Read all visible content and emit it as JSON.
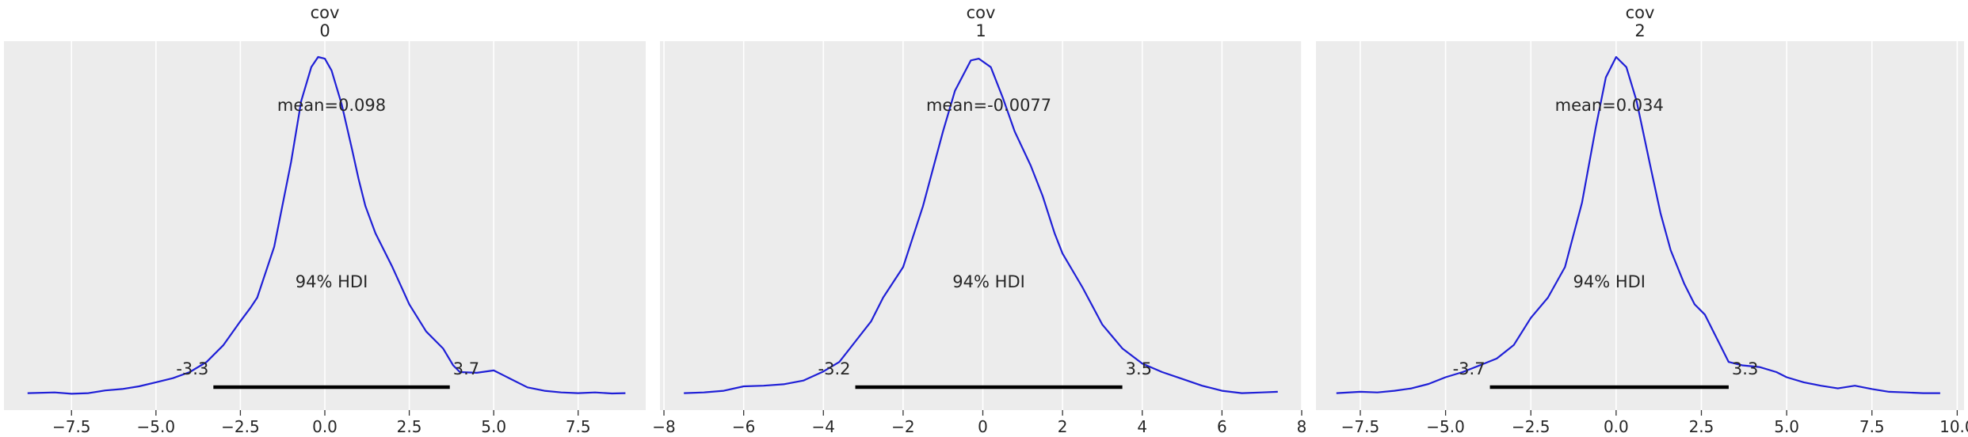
{
  "chart_data": [
    {
      "type": "density",
      "title_lines": [
        "cov",
        "0"
      ],
      "xlim": [
        -9.5,
        9.5
      ],
      "xticks": [
        -7.5,
        -5.0,
        -2.5,
        0.0,
        2.5,
        5.0,
        7.5
      ],
      "xtick_labels": [
        "−7.5",
        "−5.0",
        "−2.5",
        "0.0",
        "2.5",
        "5.0",
        "7.5"
      ],
      "mean_label": "mean=0.098",
      "hdi_label": "94% HDI",
      "hdi": [
        -3.3,
        3.7
      ],
      "hdi_low_label": "-3.3",
      "hdi_high_label": "3.7",
      "curve_color": "#1f1fd6",
      "points": [
        [
          -8.8,
          0.008
        ],
        [
          -8.0,
          0.01
        ],
        [
          -7.5,
          0.006
        ],
        [
          -7.0,
          0.008
        ],
        [
          -6.5,
          0.016
        ],
        [
          -6.0,
          0.02
        ],
        [
          -5.5,
          0.028
        ],
        [
          -5.0,
          0.04
        ],
        [
          -4.5,
          0.052
        ],
        [
          -4.0,
          0.07
        ],
        [
          -3.5,
          0.1
        ],
        [
          -3.0,
          0.15
        ],
        [
          -2.5,
          0.22
        ],
        [
          -2.2,
          0.26
        ],
        [
          -2.0,
          0.29
        ],
        [
          -1.5,
          0.44
        ],
        [
          -1.0,
          0.69
        ],
        [
          -0.7,
          0.87
        ],
        [
          -0.4,
          0.97
        ],
        [
          -0.2,
          1.0
        ],
        [
          0.0,
          0.995
        ],
        [
          0.2,
          0.96
        ],
        [
          0.5,
          0.86
        ],
        [
          0.8,
          0.73
        ],
        [
          1.0,
          0.64
        ],
        [
          1.2,
          0.56
        ],
        [
          1.5,
          0.48
        ],
        [
          2.0,
          0.38
        ],
        [
          2.5,
          0.27
        ],
        [
          3.0,
          0.19
        ],
        [
          3.5,
          0.14
        ],
        [
          3.8,
          0.09
        ],
        [
          4.0,
          0.07
        ],
        [
          4.5,
          0.068
        ],
        [
          5.0,
          0.075
        ],
        [
          5.5,
          0.05
        ],
        [
          6.0,
          0.025
        ],
        [
          6.5,
          0.015
        ],
        [
          7.0,
          0.01
        ],
        [
          7.5,
          0.008
        ],
        [
          8.0,
          0.01
        ],
        [
          8.5,
          0.007
        ],
        [
          8.9,
          0.008
        ]
      ]
    },
    {
      "type": "density",
      "title_lines": [
        "cov",
        "1"
      ],
      "xlim": [
        -8.1,
        8.0
      ],
      "xticks": [
        -8,
        -6,
        -4,
        -2,
        0,
        2,
        4,
        6,
        8
      ],
      "xtick_labels": [
        "−8",
        "−6",
        "−4",
        "−2",
        "0",
        "2",
        "4",
        "6",
        "8"
      ],
      "mean_label": "mean=-0.0077",
      "hdi_label": "94% HDI",
      "hdi": [
        -3.2,
        3.5
      ],
      "hdi_low_label": "-3.2",
      "hdi_high_label": "3.5",
      "curve_color": "#1f1fd6",
      "points": [
        [
          -7.5,
          0.008
        ],
        [
          -7.0,
          0.01
        ],
        [
          -6.5,
          0.015
        ],
        [
          -6.0,
          0.028
        ],
        [
          -5.5,
          0.03
        ],
        [
          -5.0,
          0.034
        ],
        [
          -4.5,
          0.045
        ],
        [
          -4.0,
          0.072
        ],
        [
          -3.6,
          0.1
        ],
        [
          -3.2,
          0.16
        ],
        [
          -2.8,
          0.22
        ],
        [
          -2.5,
          0.29
        ],
        [
          -2.0,
          0.38
        ],
        [
          -1.5,
          0.56
        ],
        [
          -1.0,
          0.78
        ],
        [
          -0.7,
          0.9
        ],
        [
          -0.3,
          0.99
        ],
        [
          -0.1,
          0.995
        ],
        [
          0.2,
          0.97
        ],
        [
          0.5,
          0.88
        ],
        [
          0.8,
          0.78
        ],
        [
          1.2,
          0.68
        ],
        [
          1.5,
          0.59
        ],
        [
          1.8,
          0.48
        ],
        [
          2.0,
          0.42
        ],
        [
          2.5,
          0.32
        ],
        [
          3.0,
          0.21
        ],
        [
          3.5,
          0.14
        ],
        [
          4.0,
          0.095
        ],
        [
          4.5,
          0.07
        ],
        [
          5.0,
          0.05
        ],
        [
          5.5,
          0.03
        ],
        [
          6.0,
          0.015
        ],
        [
          6.5,
          0.008
        ],
        [
          7.0,
          0.01
        ],
        [
          7.4,
          0.012
        ]
      ]
    },
    {
      "type": "density",
      "title_lines": [
        "cov",
        "2"
      ],
      "xlim": [
        -8.8,
        10.2
      ],
      "xticks": [
        -7.5,
        -5.0,
        -2.5,
        0.0,
        2.5,
        5.0,
        7.5,
        10.0
      ],
      "xtick_labels": [
        "−7.5",
        "−5.0",
        "−2.5",
        "0.0",
        "2.5",
        "5.0",
        "7.5",
        "10.0"
      ],
      "mean_label": "mean=0.034",
      "hdi_label": "94% HDI",
      "hdi": [
        -3.7,
        3.3
      ],
      "hdi_low_label": "-3.7",
      "hdi_high_label": "3.3",
      "curve_color": "#1f1fd6",
      "points": [
        [
          -8.2,
          0.008
        ],
        [
          -7.5,
          0.012
        ],
        [
          -7.0,
          0.01
        ],
        [
          -6.5,
          0.015
        ],
        [
          -6.0,
          0.022
        ],
        [
          -5.5,
          0.035
        ],
        [
          -5.0,
          0.055
        ],
        [
          -4.5,
          0.07
        ],
        [
          -4.0,
          0.09
        ],
        [
          -3.5,
          0.11
        ],
        [
          -3.0,
          0.15
        ],
        [
          -2.5,
          0.23
        ],
        [
          -2.0,
          0.29
        ],
        [
          -1.5,
          0.38
        ],
        [
          -1.0,
          0.57
        ],
        [
          -0.6,
          0.79
        ],
        [
          -0.3,
          0.94
        ],
        [
          0.0,
          1.0
        ],
        [
          0.3,
          0.97
        ],
        [
          0.6,
          0.87
        ],
        [
          1.0,
          0.68
        ],
        [
          1.3,
          0.54
        ],
        [
          1.6,
          0.43
        ],
        [
          2.0,
          0.33
        ],
        [
          2.3,
          0.27
        ],
        [
          2.6,
          0.24
        ],
        [
          3.0,
          0.16
        ],
        [
          3.3,
          0.1
        ],
        [
          3.7,
          0.09
        ],
        [
          4.2,
          0.085
        ],
        [
          4.7,
          0.07
        ],
        [
          5.0,
          0.055
        ],
        [
          5.5,
          0.04
        ],
        [
          6.0,
          0.03
        ],
        [
          6.5,
          0.022
        ],
        [
          7.0,
          0.03
        ],
        [
          7.5,
          0.02
        ],
        [
          8.0,
          0.012
        ],
        [
          8.5,
          0.01
        ],
        [
          9.0,
          0.008
        ],
        [
          9.5,
          0.008
        ]
      ]
    }
  ]
}
